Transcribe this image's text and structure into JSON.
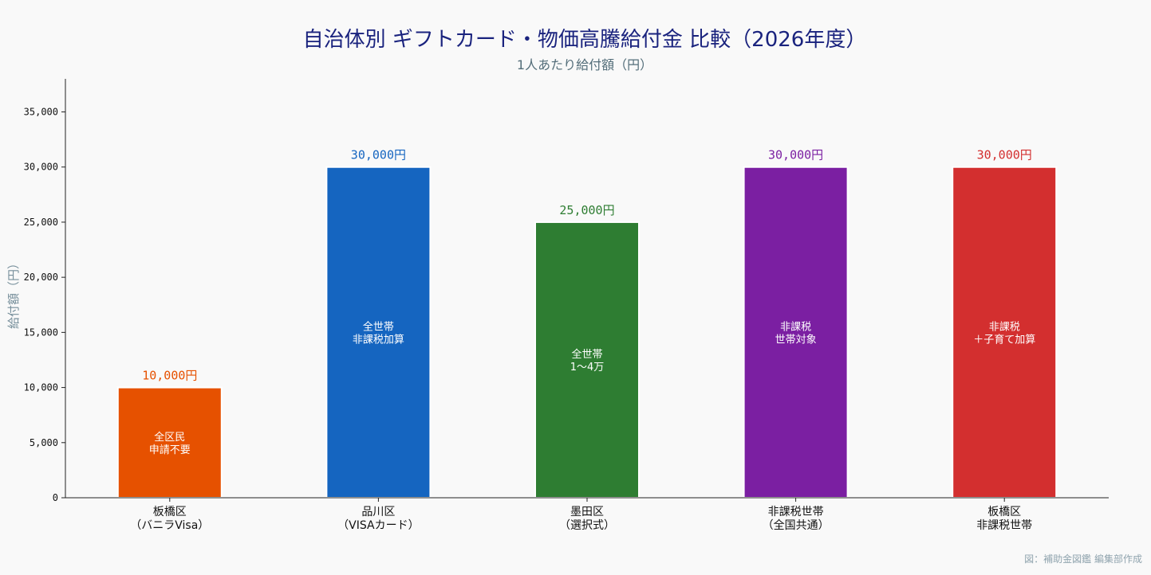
{
  "chart_data": {
    "type": "bar",
    "title": "自治体別 ギフトカード・物価高騰給付金 比較（2026年度）",
    "subtitle": "1人あたり給付額（円）",
    "ylabel": "給付額（円）",
    "xlabel": "",
    "ylim": [
      0,
      38000
    ],
    "yticks": [
      0,
      5000,
      10000,
      15000,
      20000,
      25000,
      30000,
      35000
    ],
    "ytick_labels": [
      "0",
      "5,000",
      "10,000",
      "15,000",
      "20,000",
      "25,000",
      "30,000",
      "35,000"
    ],
    "grid": false,
    "categories": [
      [
        "板橋区",
        "（バニラVisa）"
      ],
      [
        "品川区",
        "（VISAカード）"
      ],
      [
        "墨田区",
        "（選択式）"
      ],
      [
        "非課税世帯",
        "（全国共通）"
      ],
      [
        "板橋区",
        "非課税世帯"
      ]
    ],
    "values": [
      10000,
      30000,
      25000,
      30000,
      30000
    ],
    "value_labels": [
      "10,000円",
      "30,000円",
      "25,000円",
      "30,000円",
      "30,000円"
    ],
    "inner_labels": [
      [
        "全区民",
        "申請不要"
      ],
      [
        "全世帯",
        "非課税加算"
      ],
      [
        "全世帯",
        "1〜4万"
      ],
      [
        "非課税",
        "世帯対象"
      ],
      [
        "非課税",
        "＋子育て加算"
      ]
    ],
    "colors": [
      "#e65100",
      "#1565c0",
      "#2e7d32",
      "#7b1fa2",
      "#d32f2f"
    ],
    "label_colors": [
      "#e65100",
      "#1565c0",
      "#2e7d32",
      "#7b1fa2",
      "#d32f2f"
    ]
  },
  "footer": {
    "credit": "図：補助金図鑑 編集部作成"
  },
  "theme": {
    "title_color": "#1a237e",
    "subtitle_color": "#546e7a",
    "axis_label_color": "#78909c",
    "credit_color": "#90a4ae",
    "background": "#f9f9f9"
  }
}
